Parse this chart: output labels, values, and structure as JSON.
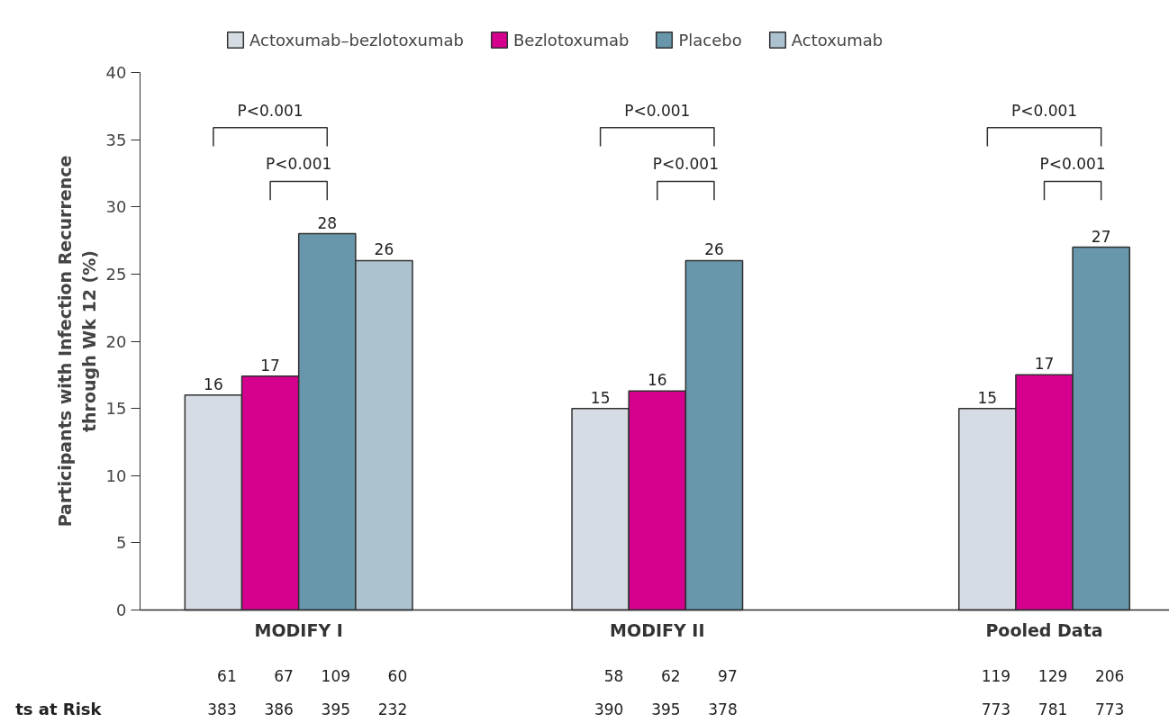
{
  "chart_data": {
    "type": "bar",
    "ylabel": "Participants with Infection Recurrence\nthrough Wk 12 (%)",
    "categories": [
      "MODIFY I",
      "MODIFY II",
      "Pooled Data"
    ],
    "series": [
      {
        "name": "Actoxumab–bezlotoxumab",
        "color": "#d6dce3",
        "values": [
          16,
          15,
          15
        ],
        "value_labels": [
          "16",
          "15",
          "15"
        ]
      },
      {
        "name": "Bezlotoxumab",
        "color": "#d6008f",
        "values": [
          17.4,
          16.3,
          17.5
        ],
        "value_labels": [
          "17",
          "16",
          "17"
        ]
      },
      {
        "name": "Placebo",
        "color": "#6896ab",
        "values": [
          28,
          26,
          27
        ],
        "value_labels": [
          "28",
          "26",
          "27"
        ]
      },
      {
        "name": "Actoxumab",
        "color": "#adc2cf",
        "values": [
          26,
          null,
          null
        ],
        "value_labels": [
          "26",
          null,
          null
        ]
      }
    ],
    "ylim": [
      0,
      40
    ],
    "yticks": [
      0,
      5,
      10,
      15,
      20,
      25,
      30,
      35,
      40
    ],
    "grid": false,
    "legend": "top",
    "annotations": [
      "P<0.001",
      "P<0.001",
      "P<0.001",
      "P<0.001",
      "P<0.001",
      "P<0.001",
      "ts at Risk",
      "61 67 109 60",
      "383 386 395 232",
      "58 62 97",
      "390 395 378",
      "119 129 206",
      "773 781 773"
    ]
  }
}
